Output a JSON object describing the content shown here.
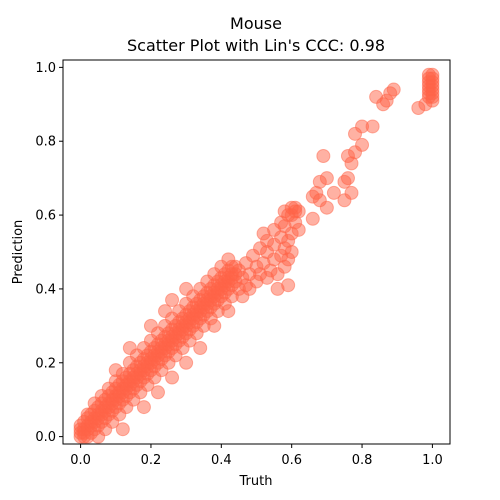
{
  "chart_data": {
    "type": "scatter",
    "title": "Mouse",
    "subtitle": "Scatter Plot with Lin's CCC: 0.98",
    "xlabel": "Truth",
    "ylabel": "Prediction",
    "xlim": [
      -0.05,
      1.05
    ],
    "ylim": [
      -0.02,
      1.02
    ],
    "xticks": [
      0.0,
      0.2,
      0.4,
      0.6,
      0.8,
      1.0
    ],
    "yticks": [
      0.0,
      0.2,
      0.4,
      0.6,
      0.8,
      1.0
    ],
    "xtick_labels": [
      "0.0",
      "0.2",
      "0.4",
      "0.6",
      "0.8",
      "1.0"
    ],
    "ytick_labels": [
      "0.0",
      "0.2",
      "0.4",
      "0.6",
      "0.8",
      "1.0"
    ],
    "grid": false,
    "marker_color": "#ff6347",
    "marker_alpha": 0.5,
    "points": [
      [
        0.0,
        0.0
      ],
      [
        0.0,
        0.01
      ],
      [
        0.0,
        0.02
      ],
      [
        0.0,
        0.03
      ],
      [
        0.01,
        0.0
      ],
      [
        0.01,
        0.02
      ],
      [
        0.01,
        0.04
      ],
      [
        0.01,
        0.01
      ],
      [
        0.02,
        0.0
      ],
      [
        0.02,
        0.02
      ],
      [
        0.02,
        0.03
      ],
      [
        0.02,
        0.05
      ],
      [
        0.03,
        0.01
      ],
      [
        0.03,
        0.03
      ],
      [
        0.03,
        0.04
      ],
      [
        0.03,
        0.06
      ],
      [
        0.04,
        0.02
      ],
      [
        0.04,
        0.04
      ],
      [
        0.04,
        0.05
      ],
      [
        0.04,
        0.07
      ],
      [
        0.05,
        0.03
      ],
      [
        0.05,
        0.05
      ],
      [
        0.05,
        0.06
      ],
      [
        0.05,
        0.08
      ],
      [
        0.06,
        0.04
      ],
      [
        0.06,
        0.06
      ],
      [
        0.06,
        0.07
      ],
      [
        0.06,
        0.09
      ],
      [
        0.07,
        0.05
      ],
      [
        0.07,
        0.07
      ],
      [
        0.07,
        0.08
      ],
      [
        0.07,
        0.1
      ],
      [
        0.08,
        0.06
      ],
      [
        0.08,
        0.08
      ],
      [
        0.08,
        0.09
      ],
      [
        0.08,
        0.11
      ],
      [
        0.09,
        0.07
      ],
      [
        0.09,
        0.09
      ],
      [
        0.09,
        0.1
      ],
      [
        0.09,
        0.12
      ],
      [
        0.1,
        0.08
      ],
      [
        0.1,
        0.1
      ],
      [
        0.1,
        0.11
      ],
      [
        0.1,
        0.13
      ],
      [
        0.11,
        0.09
      ],
      [
        0.11,
        0.11
      ],
      [
        0.11,
        0.12
      ],
      [
        0.11,
        0.14
      ],
      [
        0.12,
        0.1
      ],
      [
        0.12,
        0.12
      ],
      [
        0.12,
        0.13
      ],
      [
        0.12,
        0.15
      ],
      [
        0.13,
        0.11
      ],
      [
        0.13,
        0.13
      ],
      [
        0.13,
        0.14
      ],
      [
        0.13,
        0.16
      ],
      [
        0.14,
        0.12
      ],
      [
        0.14,
        0.14
      ],
      [
        0.14,
        0.15
      ],
      [
        0.14,
        0.17
      ],
      [
        0.15,
        0.13
      ],
      [
        0.15,
        0.15
      ],
      [
        0.15,
        0.16
      ],
      [
        0.15,
        0.18
      ],
      [
        0.16,
        0.14
      ],
      [
        0.16,
        0.16
      ],
      [
        0.16,
        0.17
      ],
      [
        0.16,
        0.19
      ],
      [
        0.17,
        0.15
      ],
      [
        0.17,
        0.17
      ],
      [
        0.17,
        0.18
      ],
      [
        0.17,
        0.2
      ],
      [
        0.18,
        0.16
      ],
      [
        0.18,
        0.18
      ],
      [
        0.18,
        0.19
      ],
      [
        0.18,
        0.21
      ],
      [
        0.19,
        0.17
      ],
      [
        0.19,
        0.19
      ],
      [
        0.19,
        0.2
      ],
      [
        0.19,
        0.22
      ],
      [
        0.2,
        0.18
      ],
      [
        0.2,
        0.2
      ],
      [
        0.2,
        0.21
      ],
      [
        0.2,
        0.23
      ],
      [
        0.21,
        0.19
      ],
      [
        0.21,
        0.21
      ],
      [
        0.21,
        0.22
      ],
      [
        0.21,
        0.24
      ],
      [
        0.22,
        0.2
      ],
      [
        0.22,
        0.22
      ],
      [
        0.22,
        0.23
      ],
      [
        0.22,
        0.25
      ],
      [
        0.23,
        0.21
      ],
      [
        0.23,
        0.23
      ],
      [
        0.23,
        0.24
      ],
      [
        0.23,
        0.26
      ],
      [
        0.24,
        0.22
      ],
      [
        0.24,
        0.24
      ],
      [
        0.24,
        0.25
      ],
      [
        0.24,
        0.27
      ],
      [
        0.25,
        0.23
      ],
      [
        0.25,
        0.25
      ],
      [
        0.25,
        0.26
      ],
      [
        0.25,
        0.28
      ],
      [
        0.26,
        0.24
      ],
      [
        0.26,
        0.26
      ],
      [
        0.26,
        0.27
      ],
      [
        0.26,
        0.29
      ],
      [
        0.27,
        0.25
      ],
      [
        0.27,
        0.27
      ],
      [
        0.27,
        0.28
      ],
      [
        0.27,
        0.3
      ],
      [
        0.28,
        0.26
      ],
      [
        0.28,
        0.28
      ],
      [
        0.28,
        0.29
      ],
      [
        0.28,
        0.31
      ],
      [
        0.29,
        0.27
      ],
      [
        0.29,
        0.29
      ],
      [
        0.29,
        0.3
      ],
      [
        0.29,
        0.32
      ],
      [
        0.3,
        0.28
      ],
      [
        0.3,
        0.3
      ],
      [
        0.3,
        0.31
      ],
      [
        0.3,
        0.33
      ],
      [
        0.31,
        0.29
      ],
      [
        0.31,
        0.31
      ],
      [
        0.31,
        0.32
      ],
      [
        0.31,
        0.34
      ],
      [
        0.32,
        0.3
      ],
      [
        0.32,
        0.32
      ],
      [
        0.32,
        0.33
      ],
      [
        0.32,
        0.35
      ],
      [
        0.33,
        0.31
      ],
      [
        0.33,
        0.33
      ],
      [
        0.33,
        0.34
      ],
      [
        0.33,
        0.36
      ],
      [
        0.34,
        0.32
      ],
      [
        0.34,
        0.34
      ],
      [
        0.34,
        0.35
      ],
      [
        0.34,
        0.37
      ],
      [
        0.35,
        0.33
      ],
      [
        0.35,
        0.35
      ],
      [
        0.35,
        0.36
      ],
      [
        0.35,
        0.38
      ],
      [
        0.36,
        0.34
      ],
      [
        0.36,
        0.36
      ],
      [
        0.36,
        0.37
      ],
      [
        0.36,
        0.39
      ],
      [
        0.37,
        0.35
      ],
      [
        0.37,
        0.37
      ],
      [
        0.37,
        0.38
      ],
      [
        0.37,
        0.4
      ],
      [
        0.38,
        0.36
      ],
      [
        0.38,
        0.38
      ],
      [
        0.38,
        0.39
      ],
      [
        0.38,
        0.41
      ],
      [
        0.39,
        0.37
      ],
      [
        0.39,
        0.39
      ],
      [
        0.39,
        0.4
      ],
      [
        0.39,
        0.42
      ],
      [
        0.4,
        0.38
      ],
      [
        0.4,
        0.4
      ],
      [
        0.4,
        0.41
      ],
      [
        0.4,
        0.43
      ],
      [
        0.41,
        0.39
      ],
      [
        0.41,
        0.41
      ],
      [
        0.41,
        0.42
      ],
      [
        0.41,
        0.44
      ],
      [
        0.42,
        0.4
      ],
      [
        0.42,
        0.42
      ],
      [
        0.42,
        0.43
      ],
      [
        0.42,
        0.45
      ],
      [
        0.43,
        0.41
      ],
      [
        0.43,
        0.43
      ],
      [
        0.43,
        0.44
      ],
      [
        0.44,
        0.42
      ],
      [
        0.44,
        0.44
      ],
      [
        0.44,
        0.46
      ],
      [
        0.05,
        0.0
      ],
      [
        0.07,
        0.02
      ],
      [
        0.09,
        0.04
      ],
      [
        0.11,
        0.06
      ],
      [
        0.13,
        0.08
      ],
      [
        0.15,
        0.1
      ],
      [
        0.17,
        0.12
      ],
      [
        0.19,
        0.14
      ],
      [
        0.21,
        0.16
      ],
      [
        0.23,
        0.18
      ],
      [
        0.25,
        0.2
      ],
      [
        0.27,
        0.22
      ],
      [
        0.29,
        0.24
      ],
      [
        0.31,
        0.26
      ],
      [
        0.33,
        0.28
      ],
      [
        0.35,
        0.3
      ],
      [
        0.37,
        0.32
      ],
      [
        0.39,
        0.34
      ],
      [
        0.41,
        0.36
      ],
      [
        0.43,
        0.38
      ],
      [
        0.02,
        0.06
      ],
      [
        0.04,
        0.09
      ],
      [
        0.06,
        0.11
      ],
      [
        0.08,
        0.13
      ],
      [
        0.1,
        0.15
      ],
      [
        0.12,
        0.17
      ],
      [
        0.14,
        0.2
      ],
      [
        0.16,
        0.22
      ],
      [
        0.18,
        0.24
      ],
      [
        0.2,
        0.26
      ],
      [
        0.22,
        0.28
      ],
      [
        0.24,
        0.3
      ],
      [
        0.26,
        0.32
      ],
      [
        0.28,
        0.34
      ],
      [
        0.3,
        0.36
      ],
      [
        0.32,
        0.38
      ],
      [
        0.34,
        0.4
      ],
      [
        0.36,
        0.42
      ],
      [
        0.38,
        0.44
      ],
      [
        0.12,
        0.02
      ],
      [
        0.18,
        0.08
      ],
      [
        0.22,
        0.12
      ],
      [
        0.26,
        0.16
      ],
      [
        0.3,
        0.2
      ],
      [
        0.34,
        0.24
      ],
      [
        0.38,
        0.3
      ],
      [
        0.42,
        0.34
      ],
      [
        0.1,
        0.18
      ],
      [
        0.14,
        0.24
      ],
      [
        0.2,
        0.3
      ],
      [
        0.24,
        0.34
      ],
      [
        0.26,
        0.37
      ],
      [
        0.3,
        0.4
      ],
      [
        0.4,
        0.46
      ],
      [
        0.42,
        0.48
      ],
      [
        0.43,
        0.46
      ],
      [
        0.45,
        0.4
      ],
      [
        0.45,
        0.45
      ],
      [
        0.46,
        0.38
      ],
      [
        0.46,
        0.43
      ],
      [
        0.47,
        0.41
      ],
      [
        0.47,
        0.47
      ],
      [
        0.48,
        0.4
      ],
      [
        0.48,
        0.44
      ],
      [
        0.49,
        0.49
      ],
      [
        0.5,
        0.42
      ],
      [
        0.5,
        0.46
      ],
      [
        0.51,
        0.44
      ],
      [
        0.52,
        0.47
      ],
      [
        0.53,
        0.43
      ],
      [
        0.53,
        0.5
      ],
      [
        0.54,
        0.45
      ],
      [
        0.55,
        0.48
      ],
      [
        0.55,
        0.52
      ],
      [
        0.56,
        0.44
      ],
      [
        0.57,
        0.49
      ],
      [
        0.57,
        0.54
      ],
      [
        0.58,
        0.51
      ],
      [
        0.58,
        0.57
      ],
      [
        0.59,
        0.53
      ],
      [
        0.6,
        0.55
      ],
      [
        0.6,
        0.6
      ],
      [
        0.6,
        0.5
      ],
      [
        0.61,
        0.58
      ],
      [
        0.61,
        0.62
      ],
      [
        0.62,
        0.56
      ],
      [
        0.62,
        0.61
      ],
      [
        0.58,
        0.46
      ],
      [
        0.59,
        0.48
      ],
      [
        0.59,
        0.41
      ],
      [
        0.56,
        0.4
      ],
      [
        0.52,
        0.55
      ],
      [
        0.55,
        0.56
      ],
      [
        0.57,
        0.58
      ],
      [
        0.53,
        0.53
      ],
      [
        0.51,
        0.51
      ],
      [
        0.58,
        0.61
      ],
      [
        0.59,
        0.6
      ],
      [
        0.6,
        0.62
      ],
      [
        0.61,
        0.61
      ],
      [
        0.66,
        0.59
      ],
      [
        0.66,
        0.65
      ],
      [
        0.67,
        0.66
      ],
      [
        0.68,
        0.64
      ],
      [
        0.68,
        0.69
      ],
      [
        0.69,
        0.76
      ],
      [
        0.7,
        0.62
      ],
      [
        0.7,
        0.7
      ],
      [
        0.72,
        0.66
      ],
      [
        0.75,
        0.64
      ],
      [
        0.75,
        0.69
      ],
      [
        0.76,
        0.7
      ],
      [
        0.77,
        0.66
      ],
      [
        0.76,
        0.76
      ],
      [
        0.77,
        0.74
      ],
      [
        0.78,
        0.77
      ],
      [
        0.78,
        0.82
      ],
      [
        0.8,
        0.79
      ],
      [
        0.8,
        0.84
      ],
      [
        0.83,
        0.84
      ],
      [
        0.84,
        0.92
      ],
      [
        0.86,
        0.9
      ],
      [
        0.87,
        0.91
      ],
      [
        0.88,
        0.93
      ],
      [
        0.89,
        0.94
      ],
      [
        0.96,
        0.89
      ],
      [
        0.98,
        0.9
      ],
      [
        0.99,
        0.92
      ],
      [
        0.99,
        0.93
      ],
      [
        0.99,
        0.94
      ],
      [
        0.99,
        0.95
      ],
      [
        0.99,
        0.96
      ],
      [
        0.99,
        0.97
      ],
      [
        0.99,
        0.98
      ],
      [
        1.0,
        0.92
      ],
      [
        1.0,
        0.93
      ],
      [
        1.0,
        0.94
      ],
      [
        1.0,
        0.95
      ],
      [
        1.0,
        0.96
      ],
      [
        1.0,
        0.97
      ],
      [
        1.0,
        0.98
      ],
      [
        1.0,
        0.91
      ]
    ]
  }
}
